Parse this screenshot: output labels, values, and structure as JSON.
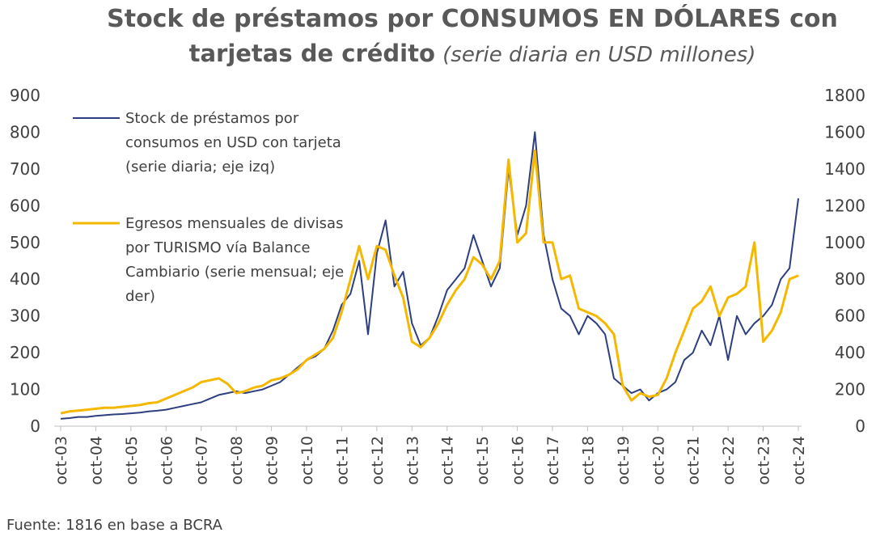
{
  "chart_data": {
    "type": "line",
    "title": [
      "Stock de préstamos por CONSUMOS EN DÓLARES con",
      "tarjetas de crédito"
    ],
    "subtitle": "(serie diaria en USD millones)",
    "source": "Fuente: 1816 en base a BCRA",
    "x": [
      "2003-10",
      "2004-01",
      "2004-04",
      "2004-07",
      "2004-10",
      "2005-01",
      "2005-04",
      "2005-07",
      "2005-10",
      "2006-01",
      "2006-04",
      "2006-07",
      "2006-10",
      "2007-01",
      "2007-04",
      "2007-07",
      "2007-10",
      "2008-01",
      "2008-04",
      "2008-07",
      "2008-10",
      "2009-01",
      "2009-04",
      "2009-07",
      "2009-10",
      "2010-01",
      "2010-04",
      "2010-07",
      "2010-10",
      "2011-01",
      "2011-04",
      "2011-07",
      "2011-10",
      "2012-01",
      "2012-04",
      "2012-07",
      "2012-10",
      "2013-01",
      "2013-04",
      "2013-07",
      "2013-10",
      "2014-01",
      "2014-04",
      "2014-07",
      "2014-10",
      "2015-01",
      "2015-04",
      "2015-07",
      "2015-10",
      "2016-01",
      "2016-04",
      "2016-07",
      "2016-10",
      "2017-01",
      "2017-04",
      "2017-07",
      "2017-10",
      "2018-01",
      "2018-04",
      "2018-07",
      "2018-10",
      "2019-01",
      "2019-04",
      "2019-07",
      "2019-10",
      "2020-01",
      "2020-04",
      "2020-07",
      "2020-10",
      "2021-01",
      "2021-04",
      "2021-07",
      "2021-10",
      "2022-01",
      "2022-04",
      "2022-07",
      "2022-10",
      "2023-01",
      "2023-04",
      "2023-07",
      "2023-10",
      "2024-01",
      "2024-04",
      "2024-07",
      "2024-10"
    ],
    "series": [
      {
        "name": "Stock de préstamos por consumos en USD con tarjeta (serie diaria; eje izq)",
        "color": "#2e3f80",
        "axis": "y",
        "values": [
          20,
          22,
          25,
          25,
          28,
          30,
          32,
          33,
          35,
          37,
          40,
          42,
          45,
          50,
          55,
          60,
          65,
          75,
          85,
          90,
          95,
          90,
          95,
          100,
          110,
          120,
          140,
          160,
          180,
          190,
          210,
          260,
          330,
          360,
          450,
          250,
          470,
          560,
          380,
          420,
          280,
          220,
          240,
          300,
          370,
          400,
          430,
          520,
          450,
          380,
          430,
          700,
          520,
          600,
          800,
          520,
          400,
          320,
          300,
          250,
          300,
          280,
          250,
          130,
          110,
          90,
          100,
          70,
          90,
          100,
          120,
          180,
          200,
          260,
          220,
          300,
          180,
          300,
          250,
          280,
          300,
          330,
          400,
          430,
          620
        ]
      },
      {
        "name": "Egresos mensuales de divisas por TURISMO vía Balance Cambiario (serie mensual; eje der)",
        "color": "#f5b800",
        "axis": "y2",
        "values": [
          70,
          80,
          85,
          90,
          95,
          100,
          100,
          105,
          110,
          115,
          125,
          130,
          150,
          170,
          190,
          210,
          240,
          250,
          260,
          230,
          180,
          190,
          210,
          220,
          250,
          260,
          280,
          310,
          360,
          390,
          420,
          480,
          620,
          800,
          980,
          800,
          980,
          960,
          820,
          700,
          460,
          430,
          480,
          560,
          660,
          740,
          800,
          920,
          880,
          800,
          900,
          1450,
          1000,
          1050,
          1500,
          1000,
          1000,
          800,
          820,
          640,
          620,
          600,
          560,
          500,
          220,
          140,
          180,
          160,
          170,
          260,
          400,
          520,
          640,
          680,
          760,
          600,
          700,
          720,
          760,
          1000,
          460,
          520,
          620,
          800,
          820
        ]
      }
    ],
    "xlim": [
      "2003-10",
      "2024-10"
    ],
    "xticks": [
      {
        "value": "2003-10",
        "label": "oct-03"
      },
      {
        "value": "2004-10",
        "label": "oct-04"
      },
      {
        "value": "2005-10",
        "label": "oct-05"
      },
      {
        "value": "2006-10",
        "label": "oct-06"
      },
      {
        "value": "2007-10",
        "label": "oct-07"
      },
      {
        "value": "2008-10",
        "label": "oct-08"
      },
      {
        "value": "2009-10",
        "label": "oct-09"
      },
      {
        "value": "2010-10",
        "label": "oct-10"
      },
      {
        "value": "2011-10",
        "label": "oct-11"
      },
      {
        "value": "2012-10",
        "label": "oct-12"
      },
      {
        "value": "2013-10",
        "label": "oct-13"
      },
      {
        "value": "2014-10",
        "label": "oct-14"
      },
      {
        "value": "2015-10",
        "label": "oct-15"
      },
      {
        "value": "2016-10",
        "label": "oct-16"
      },
      {
        "value": "2017-10",
        "label": "oct-17"
      },
      {
        "value": "2018-10",
        "label": "oct-18"
      },
      {
        "value": "2019-10",
        "label": "oct-19"
      },
      {
        "value": "2020-10",
        "label": "oct-20"
      },
      {
        "value": "2021-10",
        "label": "oct-21"
      },
      {
        "value": "2022-10",
        "label": "oct-22"
      },
      {
        "value": "2023-10",
        "label": "oct-23"
      },
      {
        "value": "2024-10",
        "label": "oct-24"
      }
    ],
    "ylim": [
      0,
      900
    ],
    "yticks": [
      0,
      100,
      200,
      300,
      400,
      500,
      600,
      700,
      800,
      900
    ],
    "y2lim": [
      0,
      1800
    ],
    "y2ticks": [
      0,
      200,
      400,
      600,
      800,
      1000,
      1200,
      1400,
      1600,
      1800
    ],
    "legend": "top-left"
  }
}
